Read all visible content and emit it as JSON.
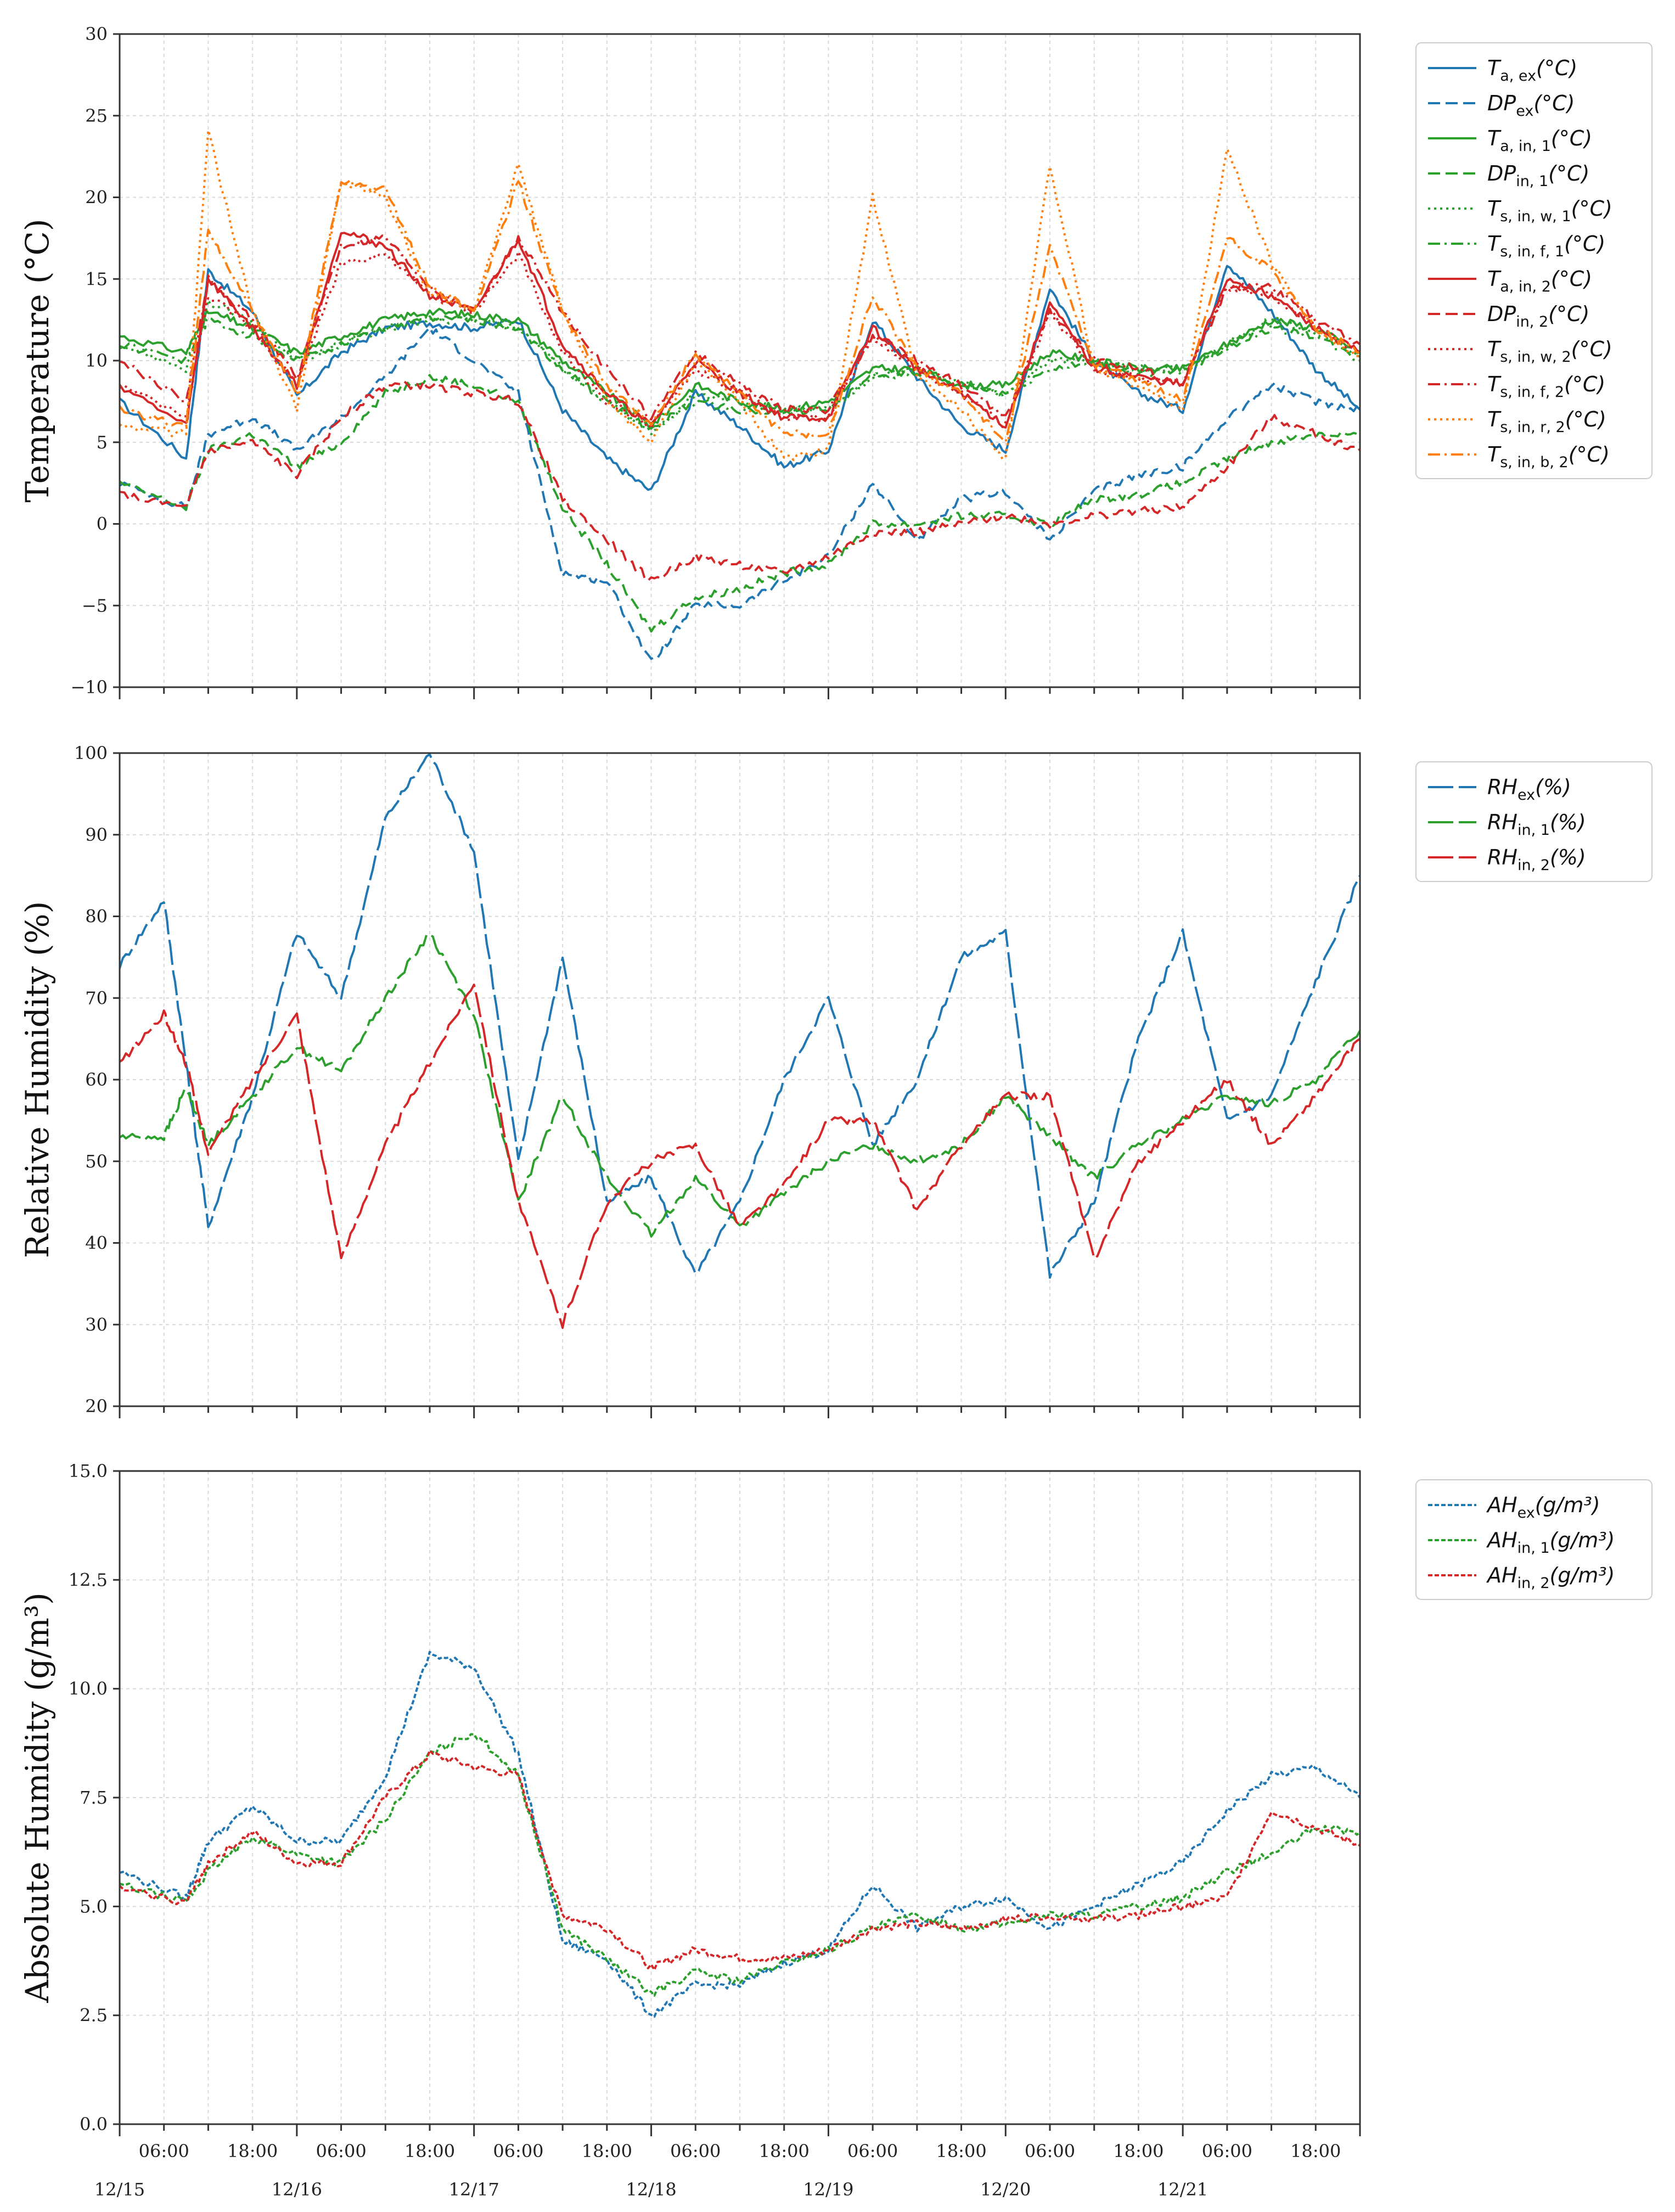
{
  "chart_data": [
    {
      "type": "line",
      "title": "",
      "ylabel": "Temperature (°C)",
      "ylim": [
        -10,
        30
      ],
      "yticks": [
        "30",
        "25",
        "20",
        "15",
        "10",
        "5",
        "0",
        "−5",
        "−10"
      ],
      "ytick_values": [
        30,
        25,
        20,
        15,
        10,
        5,
        0,
        -5,
        -10
      ],
      "x_hours": [
        0,
        9,
        12,
        18,
        24,
        30,
        36,
        42,
        48,
        54,
        60,
        66,
        72,
        78,
        84,
        90,
        96,
        102,
        108,
        114,
        120,
        126,
        132,
        138,
        144,
        150,
        156,
        162,
        168
      ],
      "series": [
        {
          "name": "T_a,ex(°C)",
          "color": "#1f77b4",
          "dash": "solid",
          "values": [
            7.5,
            4.0,
            15.5,
            13.0,
            7.8,
            10.5,
            12.0,
            12.3,
            12.0,
            12.5,
            7.0,
            4.0,
            2.0,
            8.0,
            6.0,
            3.5,
            4.5,
            12.5,
            9.0,
            6.0,
            4.5,
            14.5,
            10.0,
            8.0,
            7.0,
            16.0,
            13.0,
            9.5,
            7.0
          ]
        },
        {
          "name": "DP_ex(°C)",
          "color": "#1f77b4",
          "dash": "dashed",
          "values": [
            2.5,
            1.0,
            5.5,
            6.5,
            4.5,
            6.5,
            9.0,
            12.0,
            10.0,
            8.0,
            -3.0,
            -3.5,
            -8.5,
            -5.0,
            -5.0,
            -3.5,
            -2.0,
            2.5,
            -1.0,
            1.5,
            2.0,
            -1.0,
            2.0,
            3.0,
            3.5,
            6.5,
            8.5,
            7.5,
            7.0
          ]
        },
        {
          "name": "T_a,in,1(°C)",
          "color": "#2ca02c",
          "dash": "solid",
          "values": [
            11.5,
            10.5,
            13.0,
            12.0,
            10.5,
            11.5,
            12.5,
            13.0,
            12.8,
            12.5,
            10.0,
            8.0,
            6.0,
            8.5,
            7.5,
            7.0,
            7.5,
            9.5,
            9.5,
            8.5,
            8.5,
            10.5,
            10.0,
            9.5,
            9.5,
            11.0,
            12.5,
            12.0,
            10.5
          ]
        },
        {
          "name": "DP_in,1(°C)",
          "color": "#2ca02c",
          "dash": "dashed",
          "values": [
            2.5,
            1.0,
            4.5,
            5.5,
            3.5,
            5.0,
            8.0,
            9.0,
            8.5,
            7.5,
            1.0,
            -2.5,
            -6.5,
            -4.5,
            -4.0,
            -3.0,
            -2.5,
            0.0,
            0.0,
            0.5,
            0.5,
            0.0,
            1.5,
            1.8,
            2.5,
            4.0,
            5.0,
            5.5,
            5.5
          ]
        },
        {
          "name": "T_s,in,w,1(°C)",
          "color": "#2ca02c",
          "dash": "dotted",
          "values": [
            11.0,
            9.5,
            13.5,
            12.5,
            10.0,
            11.0,
            12.0,
            12.5,
            12.5,
            12.0,
            9.5,
            7.5,
            5.5,
            8.0,
            7.5,
            7.0,
            7.0,
            9.0,
            9.5,
            8.5,
            8.0,
            10.0,
            10.0,
            9.5,
            9.5,
            11.0,
            12.5,
            11.8,
            10.2
          ]
        },
        {
          "name": "T_s,in,f,1(°C)",
          "color": "#2ca02c",
          "dash": "dashdot",
          "values": [
            11.0,
            10.0,
            12.5,
            11.5,
            10.0,
            11.0,
            12.0,
            12.5,
            12.5,
            12.0,
            9.5,
            7.5,
            5.8,
            7.5,
            7.0,
            6.8,
            7.0,
            9.0,
            9.3,
            8.5,
            8.0,
            9.5,
            9.8,
            9.3,
            9.3,
            10.8,
            12.0,
            11.5,
            10.0
          ]
        },
        {
          "name": "T_a,in,2(°C)",
          "color": "#d62728",
          "dash": "solid",
          "values": [
            8.5,
            6.0,
            15.0,
            12.0,
            8.5,
            18.0,
            17.0,
            14.0,
            13.0,
            17.5,
            11.0,
            8.0,
            6.0,
            10.0,
            8.0,
            6.5,
            6.5,
            12.0,
            9.5,
            8.0,
            6.0,
            13.5,
            9.5,
            9.0,
            8.5,
            15.0,
            14.0,
            12.0,
            10.5
          ]
        },
        {
          "name": "DP_in,2(°C)",
          "color": "#d62728",
          "dash": "dashed",
          "values": [
            1.8,
            1.0,
            4.5,
            5.0,
            3.0,
            6.5,
            8.5,
            8.5,
            8.0,
            7.5,
            1.5,
            -1.0,
            -3.5,
            -2.0,
            -2.5,
            -3.0,
            -2.0,
            -0.5,
            -0.5,
            0.0,
            0.5,
            0.0,
            0.5,
            0.8,
            1.0,
            3.5,
            6.5,
            5.5,
            4.5
          ]
        },
        {
          "name": "T_s,in,w,2(°C)",
          "color": "#d62728",
          "dash": "dotted",
          "values": [
            8.5,
            6.5,
            14.0,
            12.0,
            8.5,
            16.0,
            16.5,
            14.0,
            13.0,
            16.5,
            10.5,
            7.5,
            6.0,
            9.5,
            8.0,
            6.5,
            6.5,
            11.5,
            9.5,
            8.0,
            6.0,
            13.0,
            9.5,
            9.0,
            8.5,
            14.5,
            14.0,
            12.0,
            10.5
          ]
        },
        {
          "name": "T_s,in,f,2(°C)",
          "color": "#d62728",
          "dash": "dashdot",
          "values": [
            10.0,
            7.5,
            15.0,
            12.5,
            9.0,
            17.0,
            17.5,
            14.5,
            13.0,
            17.5,
            13.0,
            9.5,
            6.5,
            10.5,
            8.5,
            7.0,
            7.0,
            11.5,
            10.0,
            8.5,
            6.5,
            13.0,
            10.0,
            9.5,
            8.5,
            14.5,
            14.5,
            12.5,
            11.0
          ]
        },
        {
          "name": "T_s,in,r,2(°C)",
          "color": "#ff7f0e",
          "dash": "dotted",
          "values": [
            6.0,
            5.5,
            24.0,
            13.0,
            7.0,
            21.0,
            20.0,
            14.0,
            13.0,
            22.0,
            13.0,
            7.5,
            5.0,
            10.0,
            7.5,
            4.0,
            4.5,
            20.0,
            9.0,
            7.0,
            4.0,
            22.0,
            9.5,
            8.5,
            7.0,
            23.0,
            16.0,
            12.0,
            10.0
          ]
        },
        {
          "name": "T_s,in,b,2(°C)",
          "color": "#ff7f0e",
          "dash": "dashdot",
          "values": [
            7.0,
            6.0,
            18.0,
            13.0,
            8.0,
            21.0,
            20.5,
            14.5,
            13.0,
            21.0,
            13.0,
            8.5,
            6.0,
            10.5,
            8.0,
            5.5,
            5.5,
            14.0,
            9.5,
            8.0,
            5.0,
            17.0,
            9.8,
            8.8,
            7.5,
            17.5,
            15.5,
            12.0,
            10.5
          ]
        }
      ]
    },
    {
      "type": "line",
      "title": "",
      "ylabel": "Relative Humidity (%)",
      "ylim": [
        20,
        100
      ],
      "yticks": [
        "100",
        "90",
        "80",
        "70",
        "60",
        "50",
        "40",
        "30",
        "20"
      ],
      "ytick_values": [
        100,
        90,
        80,
        70,
        60,
        50,
        40,
        30,
        20
      ],
      "x_hours": [
        0,
        6,
        9,
        12,
        18,
        24,
        30,
        36,
        42,
        48,
        54,
        60,
        66,
        72,
        78,
        84,
        90,
        96,
        102,
        108,
        114,
        120,
        126,
        132,
        138,
        144,
        150,
        156,
        162,
        168
      ],
      "series": [
        {
          "name": "RH_ex(%)",
          "color": "#1f77b4",
          "dash": "longdash",
          "values": [
            74,
            82,
            62,
            42,
            58,
            78,
            70,
            92,
            100,
            88,
            50,
            75,
            45,
            48,
            36,
            45,
            60,
            70,
            52,
            60,
            75,
            78,
            36,
            45,
            65,
            78,
            55,
            58,
            72,
            85
          ]
        },
        {
          "name": "RH_in,1(%)",
          "color": "#2ca02c",
          "dash": "longdash",
          "values": [
            53,
            53,
            59,
            52,
            58,
            64,
            61,
            70,
            78,
            68,
            45,
            58,
            48,
            41,
            48,
            42,
            46,
            50,
            52,
            50,
            52,
            58,
            53,
            48,
            52,
            55,
            58,
            57,
            60,
            66
          ]
        },
        {
          "name": "RH_in,2(%)",
          "color": "#d62728",
          "dash": "longdash",
          "values": [
            62,
            68,
            62,
            51,
            60,
            68,
            38,
            52,
            62,
            72,
            45,
            30,
            45,
            50,
            52,
            42,
            47,
            55,
            55,
            44,
            52,
            58,
            58,
            38,
            50,
            55,
            60,
            52,
            58,
            65
          ]
        }
      ]
    },
    {
      "type": "line",
      "title": "",
      "ylabel": "Absolute Humidity (g/m³)",
      "ylim": [
        0,
        15
      ],
      "yticks": [
        "15.0",
        "12.5",
        "10.0",
        "7.5",
        "5.0",
        "2.5",
        "0.0"
      ],
      "ytick_values": [
        15,
        12.5,
        10,
        7.5,
        5,
        2.5,
        0
      ],
      "x_hours": [
        0,
        9,
        12,
        18,
        24,
        30,
        36,
        42,
        48,
        54,
        60,
        66,
        72,
        78,
        84,
        90,
        96,
        102,
        108,
        114,
        120,
        126,
        132,
        138,
        144,
        150,
        156,
        162,
        168
      ],
      "series": [
        {
          "name": "AH_ex(g/m³)",
          "color": "#1f77b4",
          "dash": "shortdash",
          "values": [
            5.8,
            5.2,
            6.5,
            7.3,
            6.5,
            6.5,
            8.0,
            10.8,
            10.5,
            8.5,
            4.2,
            3.8,
            2.5,
            3.2,
            3.2,
            3.7,
            4.0,
            5.5,
            4.5,
            5.0,
            5.2,
            4.5,
            5.0,
            5.5,
            6.0,
            7.2,
            8.0,
            8.2,
            7.5
          ]
        },
        {
          "name": "AH_in,1(g/m³)",
          "color": "#2ca02c",
          "dash": "shortdash",
          "values": [
            5.5,
            5.1,
            5.8,
            6.6,
            6.2,
            6.0,
            7.0,
            8.5,
            9.0,
            8.0,
            4.5,
            3.8,
            3.0,
            3.5,
            3.3,
            3.7,
            4.0,
            4.5,
            4.8,
            4.5,
            4.6,
            4.8,
            4.8,
            5.0,
            5.2,
            5.8,
            6.2,
            6.8,
            6.7
          ]
        },
        {
          "name": "AH_in,2(g/m³)",
          "color": "#d62728",
          "dash": "shortdash",
          "values": [
            5.4,
            5.1,
            6.0,
            6.7,
            6.0,
            6.0,
            7.5,
            8.5,
            8.2,
            8.0,
            4.8,
            4.5,
            3.6,
            4.0,
            3.8,
            3.8,
            4.0,
            4.5,
            4.6,
            4.5,
            4.7,
            4.8,
            4.7,
            4.8,
            5.0,
            5.2,
            7.2,
            6.8,
            6.4
          ]
        }
      ]
    }
  ],
  "x_axis": {
    "hour_range": [
      0,
      168
    ],
    "time_labels": [
      "06:00",
      "18:00",
      "06:00",
      "18:00",
      "06:00",
      "18:00",
      "06:00",
      "18:00",
      "06:00",
      "18:00",
      "06:00",
      "18:00",
      "06:00",
      "18:00"
    ],
    "time_label_hours": [
      6,
      18,
      30,
      42,
      54,
      66,
      78,
      90,
      102,
      114,
      126,
      138,
      150,
      162
    ],
    "date_labels": [
      "12/15",
      "12/16",
      "12/17",
      "12/18",
      "12/19",
      "12/20",
      "12/21"
    ],
    "date_label_hours": [
      0,
      24,
      48,
      72,
      96,
      120,
      144
    ]
  },
  "legend_placement": "right of each panel, top"
}
